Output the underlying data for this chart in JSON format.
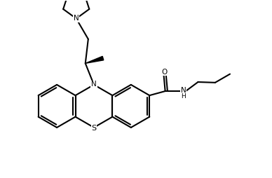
{
  "background_color": "#ffffff",
  "line_color": "#000000",
  "line_width": 1.5,
  "figsize": [
    3.88,
    2.54
  ],
  "dpi": 100,
  "xlim": [
    0,
    9.5
  ],
  "ylim": [
    0,
    6.2
  ]
}
